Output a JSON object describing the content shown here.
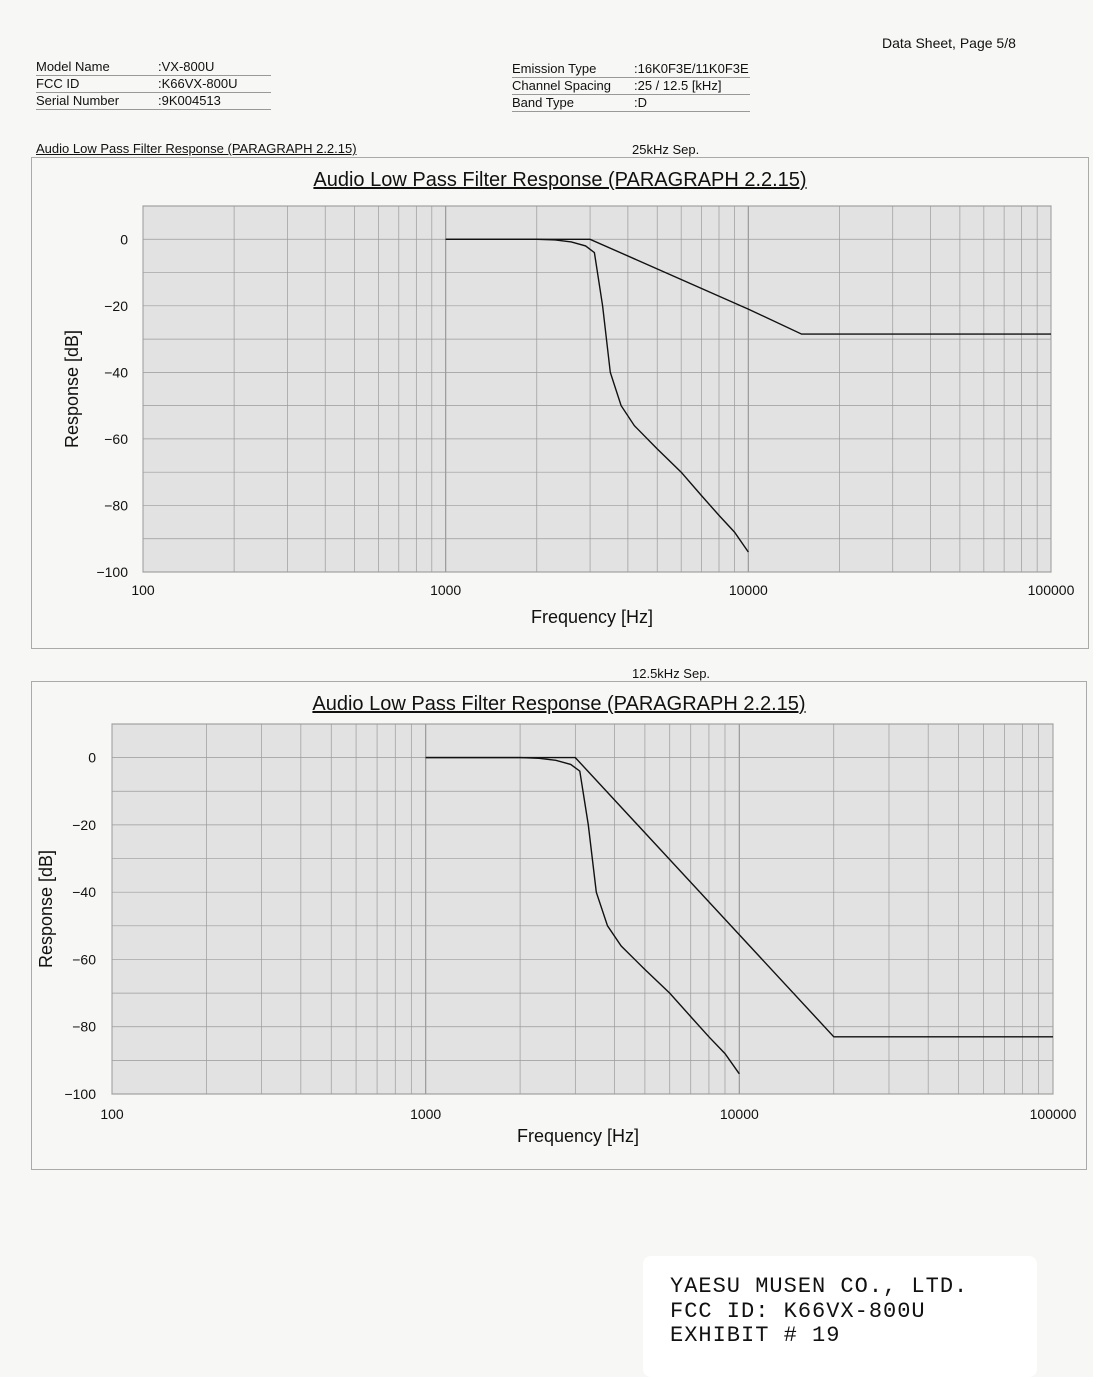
{
  "page_header": "Data Sheet, Page 5/8",
  "info_left": [
    {
      "label": "Model Name",
      "value": ":VX-800U"
    },
    {
      "label": "FCC ID",
      "value": ":K66VX-800U"
    },
    {
      "label": "Serial Number",
      "value": ":9K004513"
    }
  ],
  "info_right": [
    {
      "label": "Emission Type",
      "value": ":16K0F3E/11K0F3E"
    },
    {
      "label": "Channel Spacing",
      "value": ":25 / 12.5 [kHz]"
    },
    {
      "label": "Band Type",
      "value": ":D"
    }
  ],
  "section_caption": "Audio Low Pass Filter Response (PARAGRAPH 2.2.15)",
  "charts": [
    {
      "sep_label": "25kHz Sep."
    },
    {
      "sep_label": "12.5kHz Sep."
    }
  ],
  "stamp": {
    "line1": "YAESU MUSEN CO., LTD.",
    "line2": "FCC ID: K66VX-800U",
    "line3": "EXHIBIT # 19"
  },
  "colors": {
    "plot_bg": "#e2e2e2",
    "grid": "#9a9a9a",
    "curve": "#111111"
  },
  "chart_data": [
    {
      "type": "line",
      "title": "Audio Low Pass Filter Response (PARAGRAPH 2.2.15)",
      "xlabel": "Frequency [Hz]",
      "ylabel": "Response [dB]",
      "xscale": "log",
      "xlim": [
        100,
        100000
      ],
      "ylim": [
        -100,
        10
      ],
      "xticks": [
        100,
        1000,
        10000,
        100000
      ],
      "xtick_labels": [
        "100",
        "1000",
        "10000",
        "100000"
      ],
      "yticks": [
        0,
        -20,
        -40,
        -60,
        -80,
        -100
      ],
      "ytick_labels": [
        "0",
        "−20",
        "−40",
        "−60",
        "−80",
        "−100"
      ],
      "grid": true,
      "series": [
        {
          "x": [
            1000,
            1500,
            2000,
            2300,
            2600,
            2900,
            3100,
            3300,
            3500,
            3800,
            4200,
            5000,
            6000,
            7000,
            8000,
            9000,
            10000
          ],
          "y": [
            0,
            0,
            0,
            -0.2,
            -0.8,
            -2,
            -4,
            -20,
            -40,
            -50,
            -56,
            -63,
            -70,
            -77,
            -83,
            -88,
            -94
          ]
        },
        {
          "x": [
            1000,
            2000,
            3000,
            10000,
            15000,
            100000
          ],
          "y": [
            0,
            0,
            0,
            -21,
            -28.5,
            -28.5
          ]
        }
      ]
    },
    {
      "type": "line",
      "title": "Audio Low Pass Filter Response (PARAGRAPH 2.2.15)",
      "xlabel": "Frequency [Hz]",
      "ylabel": "Response [dB]",
      "xscale": "log",
      "xlim": [
        100,
        100000
      ],
      "ylim": [
        -100,
        10
      ],
      "xticks": [
        100,
        1000,
        10000,
        100000
      ],
      "xtick_labels": [
        "100",
        "1000",
        "10000",
        "100000"
      ],
      "yticks": [
        0,
        -20,
        -40,
        -60,
        -80,
        -100
      ],
      "ytick_labels": [
        "0",
        "−20",
        "−40",
        "−60",
        "−80",
        "−100"
      ],
      "grid": true,
      "series": [
        {
          "x": [
            1000,
            1500,
            2000,
            2300,
            2600,
            2900,
            3100,
            3300,
            3500,
            3800,
            4200,
            5000,
            6000,
            7000,
            8000,
            9000,
            10000
          ],
          "y": [
            0,
            0,
            0,
            -0.2,
            -0.8,
            -2,
            -4,
            -20,
            -40,
            -50,
            -56,
            -63,
            -70,
            -77,
            -83,
            -88,
            -94
          ]
        },
        {
          "x": [
            1000,
            2000,
            3000,
            20000,
            100000
          ],
          "y": [
            0,
            0,
            0,
            -83,
            -83
          ]
        }
      ]
    }
  ]
}
